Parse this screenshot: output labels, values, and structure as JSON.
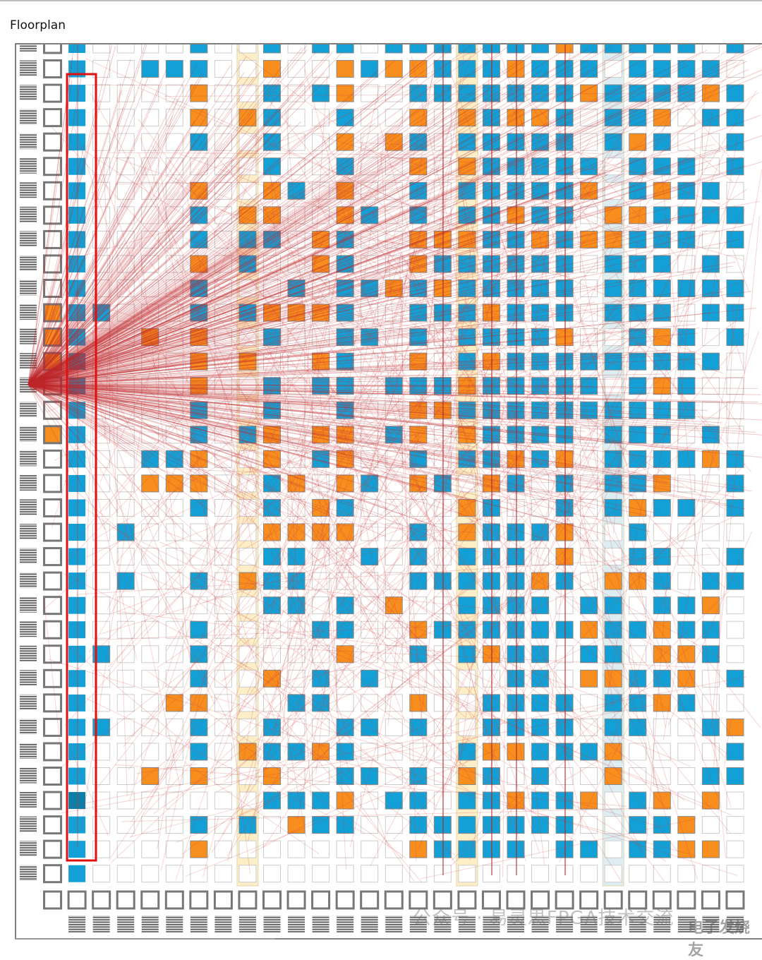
{
  "header": {
    "title": "Floorplan"
  },
  "watermark": {
    "text": "公众号 · 易灵思FPGA技术交流",
    "logo": "电子发烧友"
  }
}
